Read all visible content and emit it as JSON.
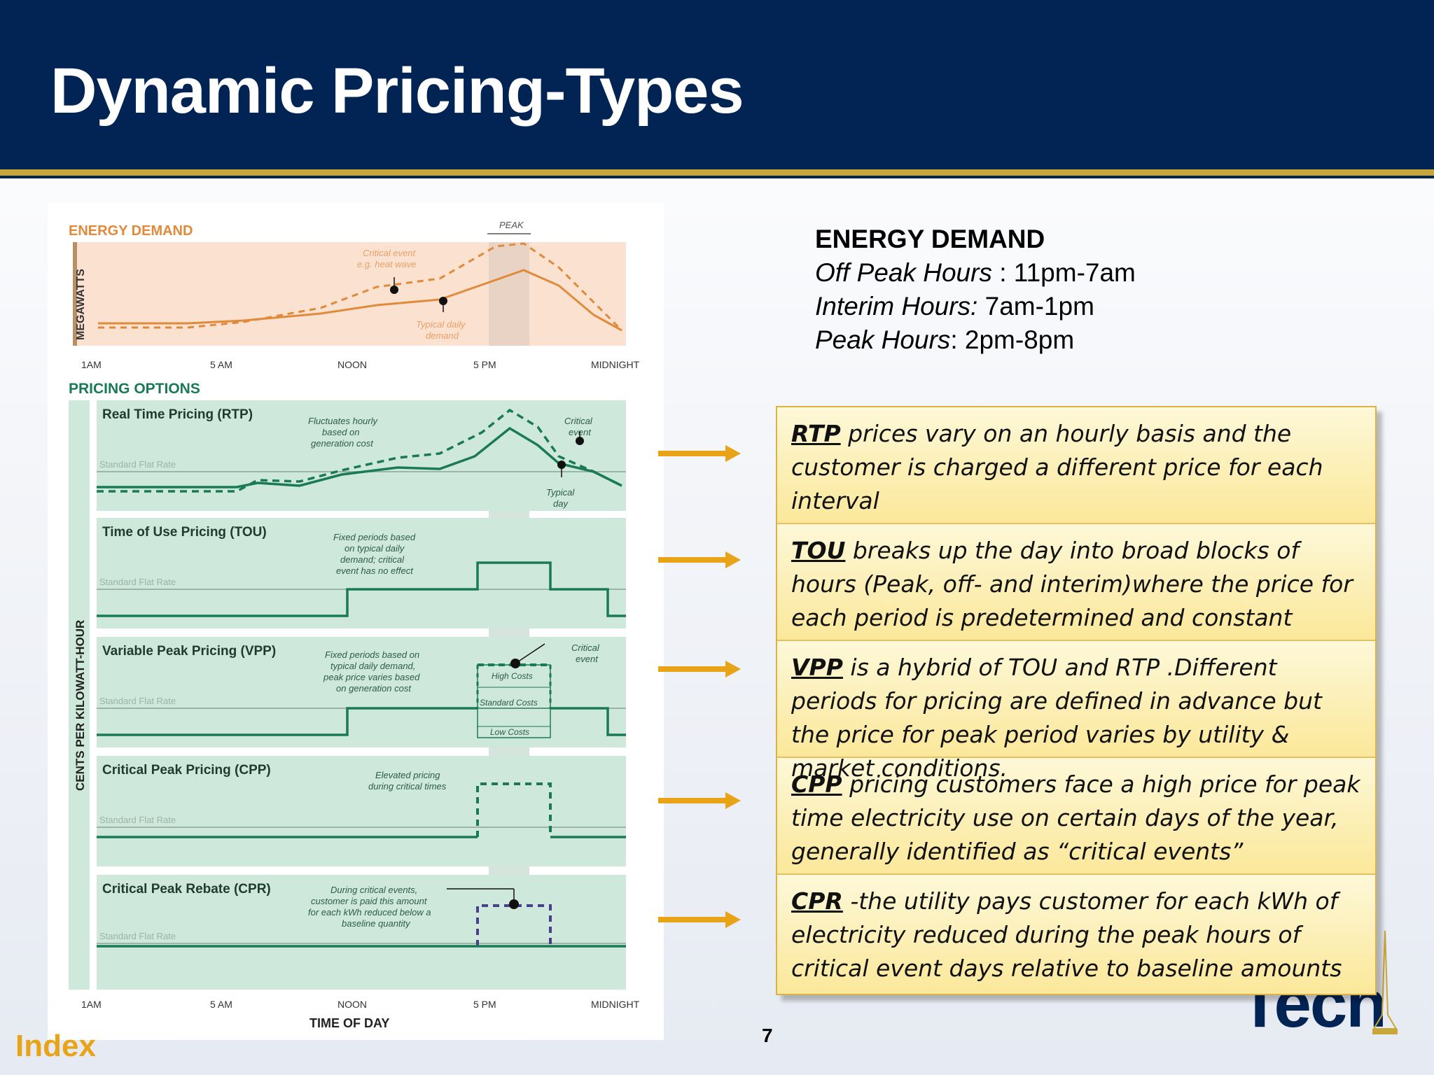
{
  "slide": {
    "title": "Dynamic Pricing-Types",
    "page_number": "7",
    "index_link": "Index",
    "logo_text": "Tech"
  },
  "figure": {
    "energy_demand_label": "ENERGY DEMAND",
    "megawatts_label": "MEGAWATTS",
    "peak_label": "PEAK",
    "critical_event_note": [
      "Critical event",
      "e.g. heat wave"
    ],
    "typical_demand_note": [
      "Typical daily",
      "demand"
    ],
    "time_labels": [
      "1AM",
      "5 AM",
      "NOON",
      "5 PM",
      "MIDNIGHT"
    ],
    "pricing_options_label": "PRICING OPTIONS",
    "cents_label": "CENTS PER KILOWATT-HOUR",
    "standard_flat_rate": "Standard Flat Rate",
    "time_of_day_label": "TIME OF DAY",
    "panels": [
      {
        "name": "Real Time Pricing (RTP)",
        "note": [
          "Fluctuates hourly",
          "based on",
          "generation cost"
        ],
        "critical_note": [
          "Critical",
          "event"
        ],
        "typical_note": [
          "Typical",
          "day"
        ]
      },
      {
        "name": "Time of Use Pricing (TOU)",
        "note": [
          "Fixed periods based",
          "on typical daily",
          "demand; critical",
          "event has no effect"
        ]
      },
      {
        "name": "Variable Peak Pricing (VPP)",
        "note": [
          "Fixed periods based on",
          "typical daily demand,",
          "peak price varies based",
          "on generation cost"
        ],
        "critical_note": [
          "Critical",
          "event"
        ],
        "cost_labels": [
          "High Costs",
          "Standard Costs",
          "Low Costs"
        ]
      },
      {
        "name": "Critical Peak Pricing (CPP)",
        "note": [
          "Elevated pricing",
          "during critical times"
        ]
      },
      {
        "name": "Critical Peak Rebate (CPR)",
        "note": [
          "During critical events,",
          "customer is paid this amount",
          "for each kWh reduced below a",
          "baseline quantity"
        ]
      }
    ]
  },
  "energy_demand": {
    "heading": "ENERGY DEMAND",
    "off_peak_label": "Off Peak Hours",
    "off_peak_value": " : 11pm-7am",
    "interim_label": "Interim Hours:",
    "interim_value": " 7am-1pm",
    "peak_label": "Peak Hours",
    "peak_value": ": 2pm-8pm"
  },
  "descriptions": [
    {
      "abbr": "RTP",
      "text": " prices vary on an hourly basis and the customer is charged a different price for each interval"
    },
    {
      "abbr": "TOU",
      "text": " breaks up the day into broad blocks of hours (Peak, off- and interim)where the price for each period is predetermined and constant"
    },
    {
      "abbr": "VPP",
      "text": " is a hybrid of TOU and RTP .Different periods for pricing are defined in advance but the price for peak period varies by utility & market conditions."
    },
    {
      "abbr": "CPP",
      "text": " pricing customers face a high price for peak time electricity use on certain days of the year, generally identified as “critical events”"
    },
    {
      "abbr": "CPR",
      "text": " -the utility pays customer for each kWh of electricity  reduced during the peak hours of critical event days relative to  baseline amounts"
    }
  ],
  "colors": {
    "navy": "#022454",
    "gold": "#c9a63a",
    "orange": "#e08a3c",
    "green": "#1a7a55",
    "panel_green": "#cfe8dc",
    "index_orange": "#e8a317"
  }
}
